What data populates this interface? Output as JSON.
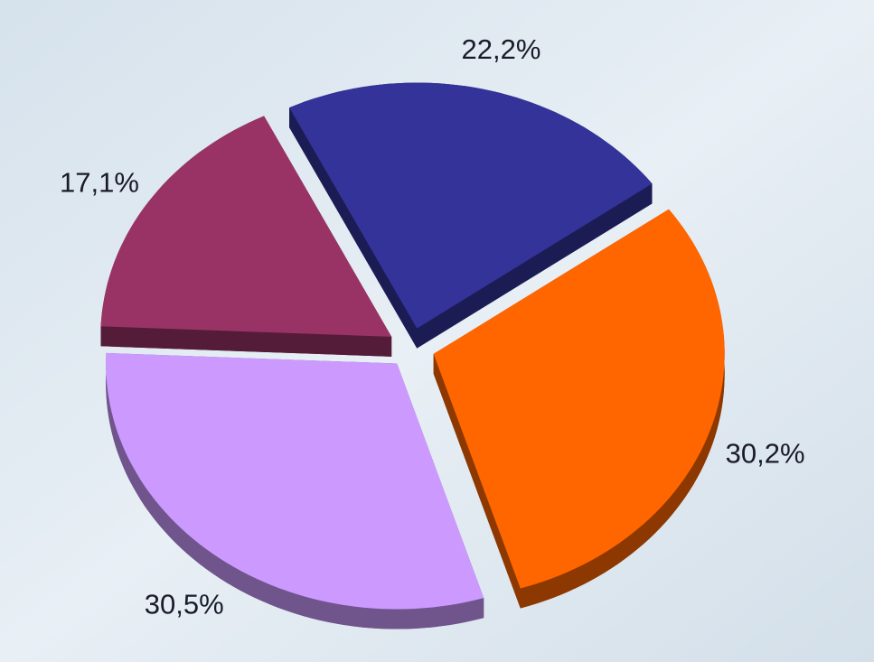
{
  "chart_data": {
    "type": "pie",
    "values": [
      22.2,
      30.2,
      30.5,
      17.1
    ],
    "value_labels": [
      "22,2%",
      "30,2%",
      "30,5%",
      "17,1%"
    ],
    "colors": [
      "#333399",
      "#ff6600",
      "#cc99ff",
      "#993366"
    ]
  }
}
